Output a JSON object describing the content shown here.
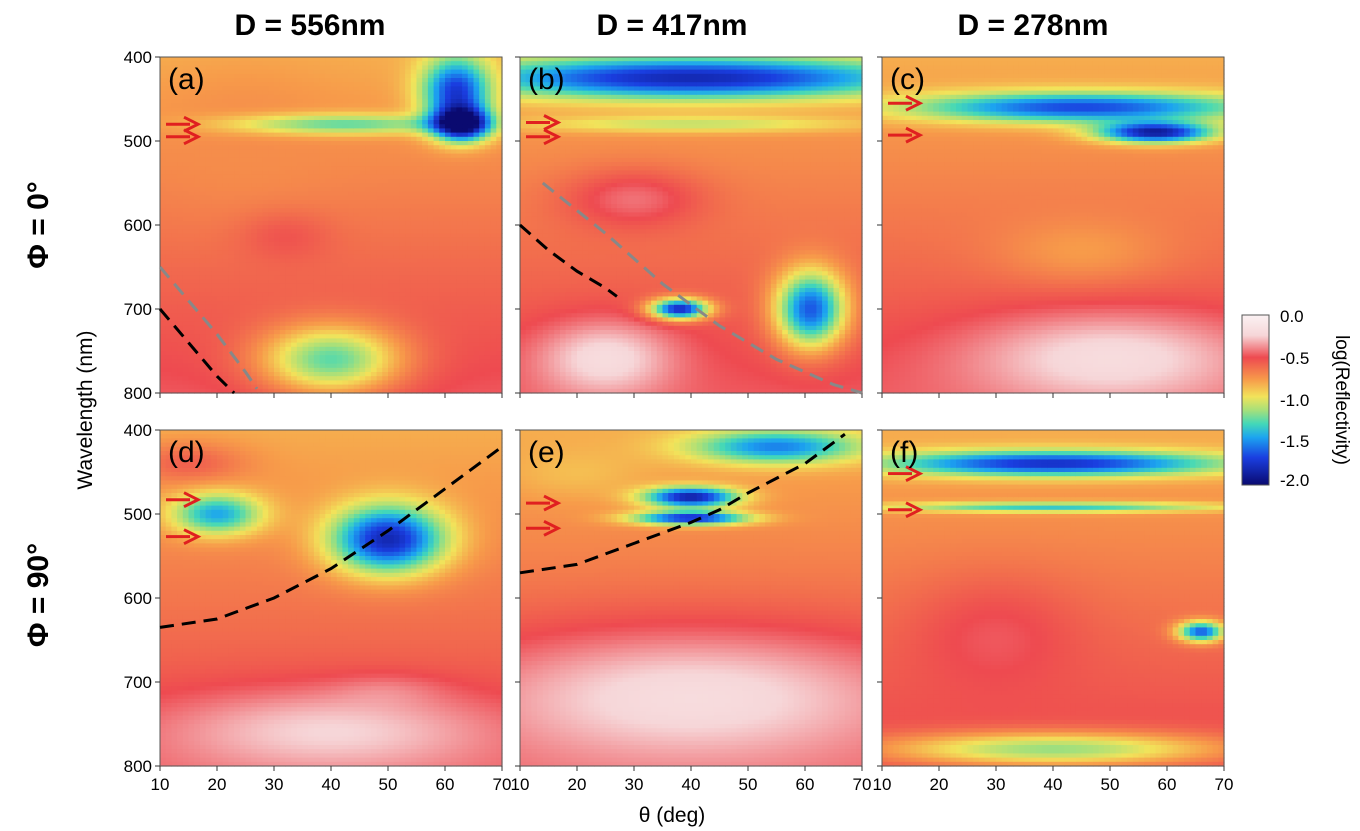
{
  "figure": {
    "column_titles": [
      "D = 556nm",
      "D = 417nm",
      "D = 278nm"
    ],
    "row_titles": [
      "Φ = 0°",
      "Φ = 90°"
    ],
    "panel_labels": [
      "(a)",
      "(b)",
      "(c)",
      "(d)",
      "(e)",
      "(f)"
    ],
    "xlabel": "θ (deg)",
    "ylabel": "Wavelength (nm)",
    "colorbar": {
      "label": "log(Reflectivity)",
      "ticks": [
        "0.0",
        "-0.5",
        "-1.0",
        "-1.5",
        "-2.0"
      ]
    }
  },
  "chart_data": {
    "type": "heatmap",
    "xlim": [
      10,
      70
    ],
    "ylim": [
      800,
      400
    ],
    "x_ticks": [
      10,
      20,
      30,
      40,
      50,
      60,
      70
    ],
    "y_ticks": [
      400,
      500,
      600,
      700,
      800
    ],
    "clim": [
      -2.1,
      0.0
    ],
    "colormap": "jet-like (white/pink high → red → orange → yellow → green → cyan → blue → navy low)",
    "colors": {
      "high": "#f7dfe0",
      "low": "#0a0a70",
      "arrow": "#e02020",
      "dashed_black": "#000000",
      "dashed_gray": "#888888"
    },
    "panels": [
      {
        "label": "(a)",
        "D_nm": 556,
        "phi_deg": 0,
        "arrows_nm": [
          480,
          495
        ],
        "dashed_black": [
          [
            10,
            700
          ],
          [
            15,
            740
          ],
          [
            20,
            780
          ],
          [
            23,
            800
          ]
        ],
        "dashed_gray": [
          [
            10,
            650
          ],
          [
            15,
            690
          ],
          [
            20,
            730
          ],
          [
            25,
            775
          ],
          [
            27,
            795
          ]
        ],
        "features": [
          {
            "x": 63,
            "y": 480,
            "sx": 5,
            "sy": 20,
            "v": -2.0
          },
          {
            "x": 62,
            "y": 440,
            "sx": 6,
            "sy": 40,
            "v": -1.8
          },
          {
            "x": 42,
            "y": 480,
            "sx": 20,
            "sy": 12,
            "v": -1.3
          },
          {
            "x": 32,
            "y": 615,
            "sx": 8,
            "sy": 30,
            "v": -0.55
          },
          {
            "x": 40,
            "y": 760,
            "sx": 12,
            "sy": 40,
            "v": -1.3
          },
          {
            "x": 25,
            "y": 500,
            "sx": 15,
            "sy": 80,
            "v": -0.75
          }
        ]
      },
      {
        "label": "(b)",
        "D_nm": 417,
        "phi_deg": 0,
        "arrows_nm": [
          478,
          495
        ],
        "dashed_black": [
          [
            10,
            600
          ],
          [
            15,
            630
          ],
          [
            20,
            655
          ],
          [
            25,
            675
          ],
          [
            27,
            685
          ]
        ],
        "dashed_gray": [
          [
            14,
            550
          ],
          [
            25,
            610
          ],
          [
            35,
            670
          ],
          [
            45,
            720
          ],
          [
            55,
            760
          ],
          [
            65,
            790
          ],
          [
            70,
            800
          ]
        ],
        "features": [
          {
            "x": 40,
            "y": 425,
            "sx": 40,
            "sy": 25,
            "v": -1.9
          },
          {
            "x": 61,
            "y": 700,
            "sx": 6,
            "sy": 45,
            "v": -1.7
          },
          {
            "x": 38,
            "y": 700,
            "sx": 5,
            "sy": 12,
            "v": -1.9
          },
          {
            "x": 30,
            "y": 570,
            "sx": 12,
            "sy": 35,
            "v": -0.45
          },
          {
            "x": 25,
            "y": 760,
            "sx": 12,
            "sy": 45,
            "v": -0.2
          },
          {
            "x": 40,
            "y": 480,
            "sx": 30,
            "sy": 10,
            "v": -1.1
          }
        ]
      },
      {
        "label": "(c)",
        "D_nm": 278,
        "phi_deg": 0,
        "arrows_nm": [
          455,
          493
        ],
        "dashed_black": [],
        "dashed_gray": [],
        "features": [
          {
            "x": 45,
            "y": 460,
            "sx": 30,
            "sy": 18,
            "v": -1.75
          },
          {
            "x": 58,
            "y": 490,
            "sx": 10,
            "sy": 12,
            "v": -1.95
          },
          {
            "x": 45,
            "y": 630,
            "sx": 15,
            "sy": 40,
            "v": -0.8
          },
          {
            "x": 50,
            "y": 760,
            "sx": 25,
            "sy": 55,
            "v": -0.2
          }
        ]
      },
      {
        "label": "(d)",
        "D_nm": 556,
        "phi_deg": 90,
        "arrows_nm": [
          483,
          527
        ],
        "dashed_black": [
          [
            10,
            635
          ],
          [
            20,
            625
          ],
          [
            30,
            600
          ],
          [
            40,
            565
          ],
          [
            50,
            520
          ],
          [
            60,
            470
          ],
          [
            70,
            420
          ]
        ],
        "dashed_gray": [],
        "features": [
          {
            "x": 50,
            "y": 530,
            "sx": 10,
            "sy": 40,
            "v": -1.9
          },
          {
            "x": 20,
            "y": 500,
            "sx": 8,
            "sy": 25,
            "v": -1.5
          },
          {
            "x": 15,
            "y": 440,
            "sx": 10,
            "sy": 25,
            "v": -0.6
          },
          {
            "x": 40,
            "y": 760,
            "sx": 30,
            "sy": 50,
            "v": -0.25
          },
          {
            "x": 50,
            "y": 710,
            "sx": 10,
            "sy": 20,
            "v": -0.5
          }
        ]
      },
      {
        "label": "(e)",
        "D_nm": 417,
        "phi_deg": 90,
        "arrows_nm": [
          487,
          517
        ],
        "dashed_black": [
          [
            10,
            570
          ],
          [
            20,
            560
          ],
          [
            30,
            535
          ],
          [
            40,
            510
          ],
          [
            45,
            495
          ],
          [
            50,
            475
          ],
          [
            60,
            440
          ],
          [
            67,
            405
          ]
        ],
        "dashed_gray": [],
        "features": [
          {
            "x": 40,
            "y": 480,
            "sx": 8,
            "sy": 12,
            "v": -1.95
          },
          {
            "x": 40,
            "y": 505,
            "sx": 10,
            "sy": 8,
            "v": -1.85
          },
          {
            "x": 55,
            "y": 420,
            "sx": 15,
            "sy": 20,
            "v": -1.6
          },
          {
            "x": 40,
            "y": 720,
            "sx": 40,
            "sy": 80,
            "v": -0.2
          },
          {
            "x": 20,
            "y": 450,
            "sx": 12,
            "sy": 30,
            "v": -0.9
          }
        ]
      },
      {
        "label": "(f)",
        "D_nm": 278,
        "phi_deg": 90,
        "arrows_nm": [
          452,
          495
        ],
        "dashed_black": [],
        "dashed_gray": [],
        "features": [
          {
            "x": 40,
            "y": 440,
            "sx": 30,
            "sy": 15,
            "v": -1.85
          },
          {
            "x": 40,
            "y": 492,
            "sx": 30,
            "sy": 6,
            "v": -1.4
          },
          {
            "x": 66,
            "y": 640,
            "sx": 4,
            "sy": 12,
            "v": -1.7
          },
          {
            "x": 30,
            "y": 650,
            "sx": 15,
            "sy": 70,
            "v": -0.5
          },
          {
            "x": 40,
            "y": 780,
            "sx": 30,
            "sy": 20,
            "v": -1.2
          }
        ]
      }
    ]
  }
}
